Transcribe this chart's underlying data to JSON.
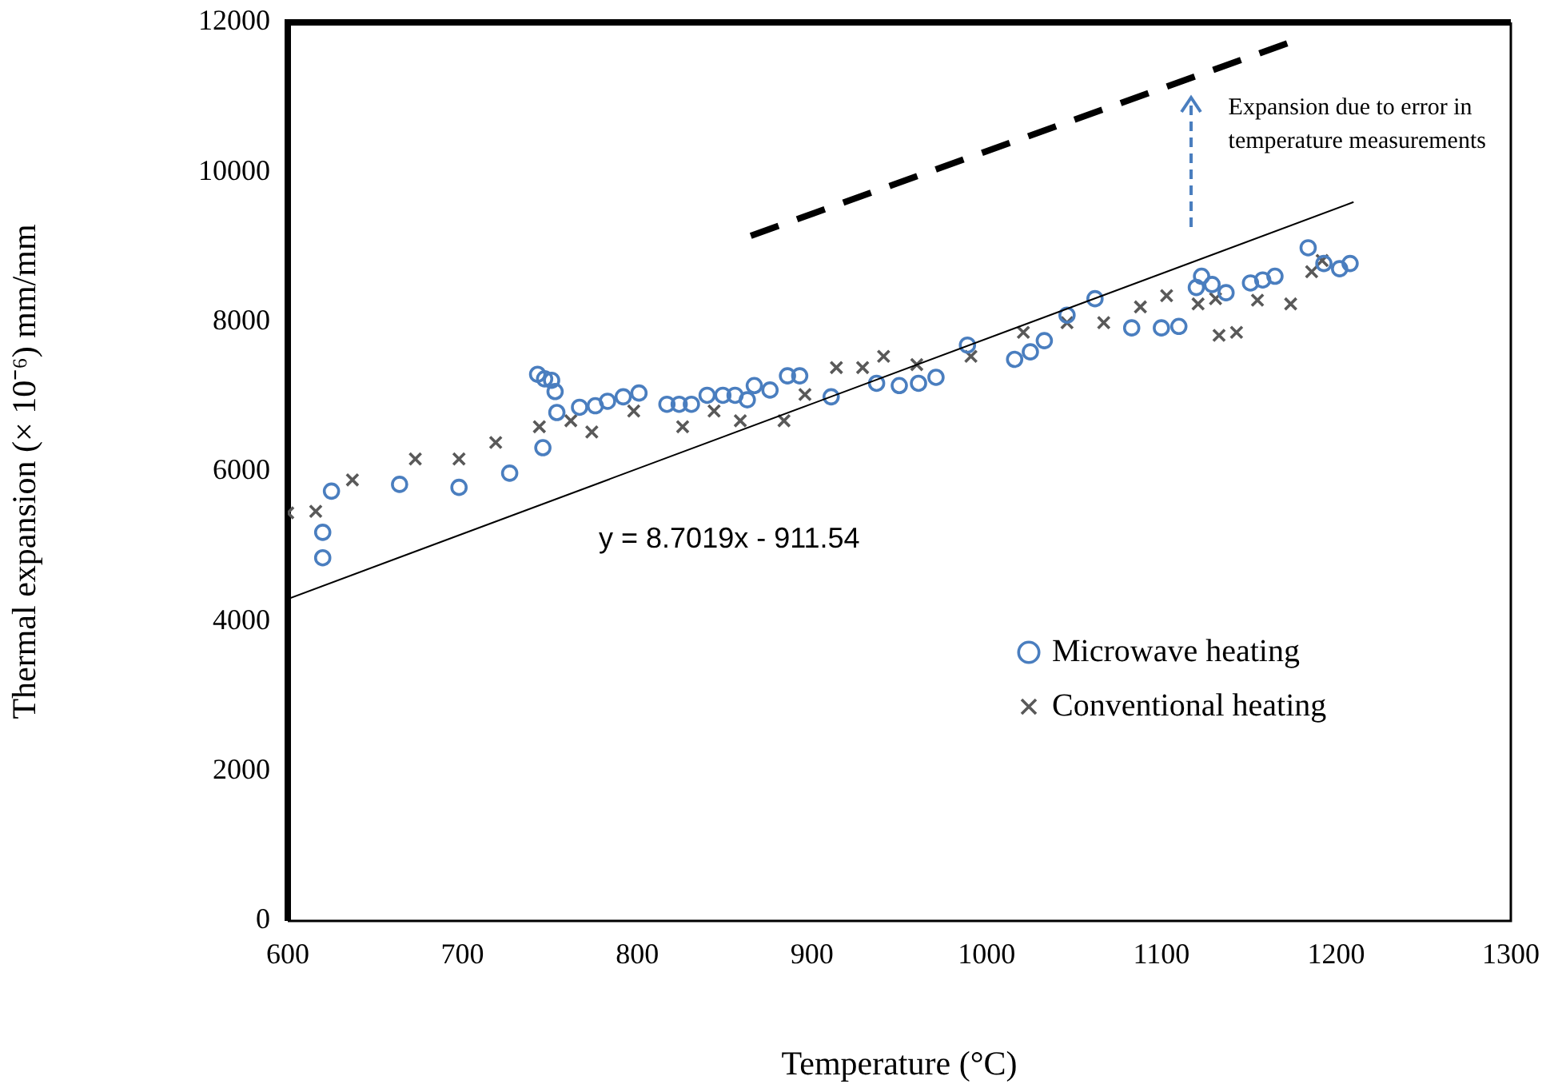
{
  "chart_data": {
    "type": "scatter",
    "xlabel": "Temperature (°C)",
    "ylabel": "Thermal expansion (× 10⁻⁶) mm/mm",
    "xlim": [
      600,
      1300
    ],
    "xticks": [
      600,
      700,
      800,
      900,
      1000,
      1100,
      1200,
      1300
    ],
    "ylim": [
      0,
      12000
    ],
    "yticks": [
      0,
      2000,
      4000,
      6000,
      8000,
      10000,
      12000
    ],
    "grid": false,
    "legend": "bottom right",
    "series": [
      {
        "name": "Microwave heating",
        "marker": "circle",
        "color": "#4a7ebf",
        "x": [
          620,
          620,
          625,
          664,
          698,
          727,
          743,
          746,
          747,
          751,
          753,
          754,
          767,
          776,
          783,
          792,
          801,
          817,
          824,
          831,
          840,
          849,
          856,
          863,
          867,
          876,
          886,
          893,
          911,
          937,
          950,
          961,
          971,
          989,
          1016,
          1025,
          1033,
          1046,
          1062,
          1083,
          1100,
          1110,
          1120,
          1123,
          1129,
          1137,
          1151,
          1158,
          1165,
          1184,
          1193,
          1202,
          1208
        ],
        "values": [
          5190,
          4850,
          5740,
          5830,
          5790,
          5980,
          7300,
          6320,
          7240,
          7220,
          7070,
          6790,
          6860,
          6880,
          6940,
          7000,
          7050,
          6900,
          6900,
          6900,
          7020,
          7020,
          7020,
          6960,
          7150,
          7090,
          7280,
          7280,
          7000,
          7180,
          7150,
          7180,
          7260,
          7690,
          7500,
          7600,
          7750,
          8090,
          8310,
          7920,
          7920,
          7940,
          8460,
          8610,
          8500,
          8390,
          8520,
          8560,
          8610,
          8990,
          8780,
          8710,
          8780
        ]
      },
      {
        "name": "Conventional heating",
        "marker": "cross",
        "color": "#595959",
        "x": [
          600,
          616,
          637,
          673,
          698,
          719,
          744,
          762,
          774,
          798,
          826,
          844,
          859,
          884,
          896,
          914,
          929,
          941,
          960,
          991,
          1021,
          1046,
          1067,
          1088,
          1103,
          1121,
          1131,
          1133,
          1143,
          1155,
          1174,
          1186,
          1192
        ],
        "values": [
          5450,
          5470,
          5890,
          6170,
          6170,
          6390,
          6600,
          6680,
          6530,
          6810,
          6600,
          6810,
          6680,
          6680,
          7030,
          7390,
          7390,
          7540,
          7430,
          7540,
          7860,
          7990,
          7990,
          8200,
          8350,
          8240,
          8310,
          7820,
          7860,
          8290,
          8240,
          8670,
          8820
        ]
      },
      {
        "type": "line",
        "marker": "none",
        "line_style": "solid",
        "color": "#000000",
        "x": [
          600,
          1210
        ],
        "values": [
          4300,
          9600
        ]
      },
      {
        "type": "line",
        "marker": "none",
        "line_style": "dashed",
        "color": "#000000",
        "x": [
          865,
          1172
        ],
        "values": [
          9150,
          11720
        ]
      }
    ],
    "annotations": [
      "y = 8.7019x - 911.54",
      "Expansion due to error in temperature measurements"
    ]
  }
}
